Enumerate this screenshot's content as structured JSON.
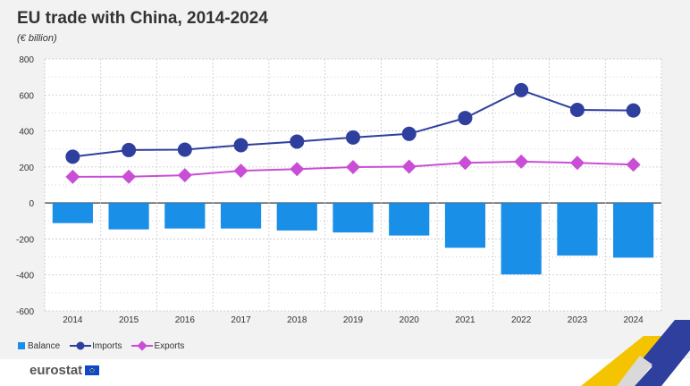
{
  "header": {
    "title": "EU trade with China, 2014-2024",
    "subtitle": "(€ billion)"
  },
  "legend": {
    "balance": "Balance",
    "imports": "Imports",
    "exports": "Exports"
  },
  "footer": {
    "brand": "eurostat"
  },
  "colors": {
    "balance": "#1a8fe8",
    "imports": "#2e3f9e",
    "exports": "#c94ed6",
    "accent_yellow": "#f5c400",
    "accent_blue": "#2e3f9e"
  },
  "chart_data": {
    "type": "bar",
    "title": "EU trade with China, 2014-2024",
    "subtitle": "(€ billion)",
    "categories": [
      "2014",
      "2015",
      "2016",
      "2017",
      "2018",
      "2019",
      "2020",
      "2021",
      "2022",
      "2023",
      "2024"
    ],
    "ylim": [
      -600,
      800
    ],
    "yticks": [
      800,
      600,
      400,
      200,
      0,
      -200,
      -400,
      -600
    ],
    "grid": true,
    "legend_position": "bottom-left",
    "series": [
      {
        "name": "Balance",
        "type": "bar",
        "values": [
          -112,
          -147,
          -142,
          -142,
          -153,
          -164,
          -181,
          -249,
          -397,
          -292,
          -304
        ]
      },
      {
        "name": "Imports",
        "type": "line",
        "marker": "circle",
        "values": [
          257,
          294,
          296,
          321,
          341,
          364,
          384,
          472,
          627,
          517,
          514
        ]
      },
      {
        "name": "Exports",
        "type": "line",
        "marker": "diamond",
        "values": [
          145,
          146,
          154,
          179,
          188,
          199,
          202,
          223,
          230,
          223,
          213
        ]
      }
    ]
  }
}
